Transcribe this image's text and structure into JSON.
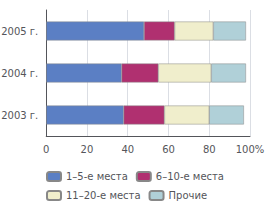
{
  "chart_data": {
    "type": "bar",
    "orientation": "horizontal",
    "stacked": true,
    "categories": [
      "2003 г.",
      "2004 г.",
      "2005 г."
    ],
    "series": [
      {
        "name": "1–5-е места",
        "color": "#5b7fc4",
        "values": [
          38,
          37,
          48
        ]
      },
      {
        "name": "6–10-е места",
        "color": "#b03070",
        "values": [
          20,
          18,
          15
        ]
      },
      {
        "name": "11–20-е места",
        "color": "#f0eecc",
        "values": [
          22,
          26,
          19
        ]
      },
      {
        "name": "Прочие",
        "color": "#b0d0d8",
        "values": [
          17,
          17,
          16
        ]
      }
    ],
    "xlim": [
      0,
      100
    ],
    "xticks": [
      0,
      20,
      40,
      60,
      80,
      {
        "value": 100,
        "label": "100%"
      }
    ],
    "grid": true,
    "legend": "bottom"
  }
}
